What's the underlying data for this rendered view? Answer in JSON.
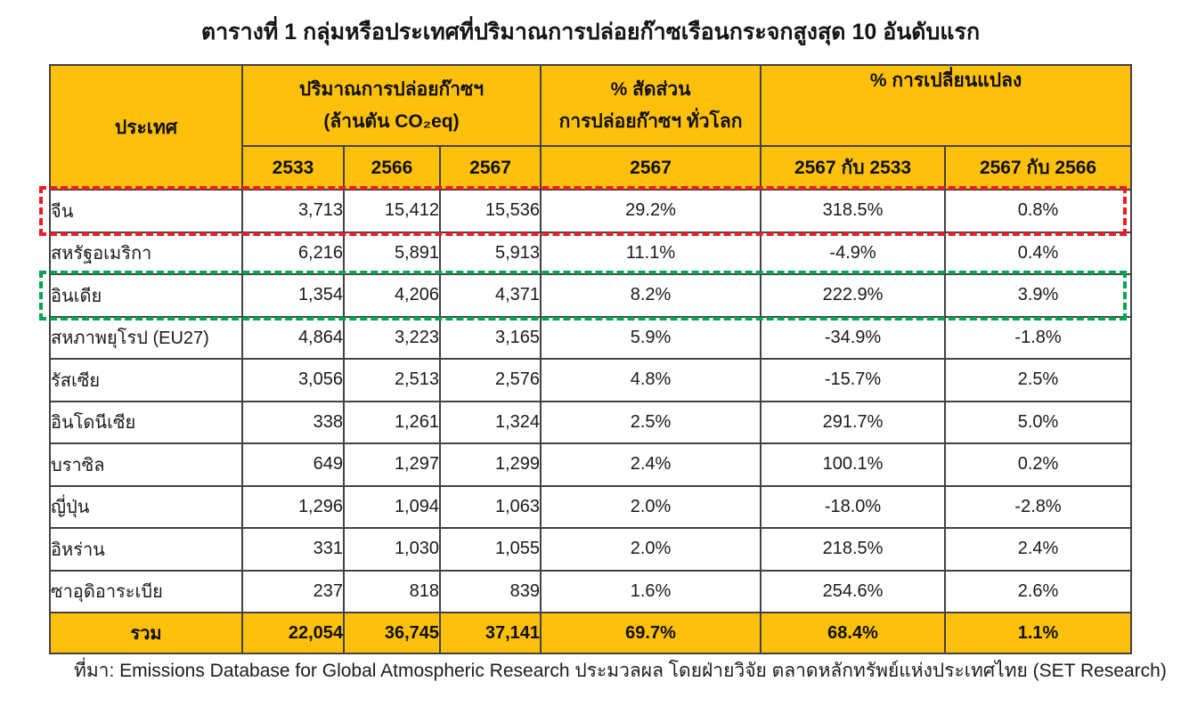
{
  "page": {
    "title": "ตารางที่ 1 กลุ่มหรือประเทศที่ปริมาณการปล่อยก๊าซเรือนกระจกสูงสุด 10 อันดับแรก",
    "source_note": "ที่มา: Emissions Database for Global Atmospheric Research ประมวลผล โดยฝ่ายวิจัย ตลาดหลักทรัพย์แห่งประเทศไทย (SET Research)"
  },
  "colors": {
    "header_bg": "#FDC00C",
    "border": "#424242",
    "highlight_red": "#EE1C25",
    "highlight_green": "#00A551"
  },
  "table": {
    "header": {
      "country": "ประเทศ",
      "emissions_title": "ปริมาณการปล่อยก๊าซฯ",
      "emissions_unit": "(ล้านตัน CO₂eq)",
      "years": [
        "2533",
        "2566",
        "2567"
      ],
      "share_title_1": "% สัดส่วน",
      "share_title_2": "การปล่อยก๊าซฯ ทั่วโลก",
      "share_year": "2567",
      "change_title": "% การเปลี่ยนแปลง",
      "change_cols": [
        "2567 กับ 2533",
        "2567 กับ 2566"
      ]
    },
    "rows": [
      {
        "country": "จีน",
        "y2533": "3,713",
        "y2566": "15,412",
        "y2567": "15,536",
        "share": "29.2%",
        "chg2533": "318.5%",
        "chg2566": "0.8%"
      },
      {
        "country": "สหรัฐอเมริกา",
        "y2533": "6,216",
        "y2566": "5,891",
        "y2567": "5,913",
        "share": "11.1%",
        "chg2533": "-4.9%",
        "chg2566": "0.4%"
      },
      {
        "country": "อินเดีย",
        "y2533": "1,354",
        "y2566": "4,206",
        "y2567": "4,371",
        "share": "8.2%",
        "chg2533": "222.9%",
        "chg2566": "3.9%"
      },
      {
        "country": "สหภาพยุโรป (EU27)",
        "y2533": "4,864",
        "y2566": "3,223",
        "y2567": "3,165",
        "share": "5.9%",
        "chg2533": "-34.9%",
        "chg2566": "-1.8%"
      },
      {
        "country": "รัสเซีย",
        "y2533": "3,056",
        "y2566": "2,513",
        "y2567": "2,576",
        "share": "4.8%",
        "chg2533": "-15.7%",
        "chg2566": "2.5%"
      },
      {
        "country": "อินโดนีเซีย",
        "y2533": "338",
        "y2566": "1,261",
        "y2567": "1,324",
        "share": "2.5%",
        "chg2533": "291.7%",
        "chg2566": "5.0%"
      },
      {
        "country": "บราซิล",
        "y2533": "649",
        "y2566": "1,297",
        "y2567": "1,299",
        "share": "2.4%",
        "chg2533": "100.1%",
        "chg2566": "0.2%"
      },
      {
        "country": "ญี่ปุ่น",
        "y2533": "1,296",
        "y2566": "1,094",
        "y2567": "1,063",
        "share": "2.0%",
        "chg2533": "-18.0%",
        "chg2566": "-2.8%"
      },
      {
        "country": "อิหร่าน",
        "y2533": "331",
        "y2566": "1,030",
        "y2567": "1,055",
        "share": "2.0%",
        "chg2533": "218.5%",
        "chg2566": "2.4%"
      },
      {
        "country": "ซาอุดิอาระเบีย",
        "y2533": "237",
        "y2566": "818",
        "y2567": "839",
        "share": "1.6%",
        "chg2533": "254.6%",
        "chg2566": "2.6%"
      }
    ],
    "total": {
      "label": "รวม",
      "y2533": "22,054",
      "y2566": "36,745",
      "y2567": "37,141",
      "share": "69.7%",
      "chg2533": "68.4%",
      "chg2566": "1.1%"
    }
  },
  "highlights": {
    "red_row_index": 0,
    "green_row_index": 2
  },
  "chart_data": {
    "type": "table",
    "title": "ตารางที่ 1 กลุ่มหรือประเทศที่ปริมาณการปล่อยก๊าซเรือนกระจกสูงสุด 10 อันดับแรก",
    "source": "ที่มา: Emissions Database for Global Atmospheric Research ประมวลผล โดยฝ่ายวิจัย ตลาดหลักทรัพย์แห่งประเทศไทย (SET Research)",
    "columns": [
      "ประเทศ",
      "ปริมาณการปล่อยก๊าซฯ (ล้านตัน CO₂eq) 2533",
      "ปริมาณการปล่อยก๊าซฯ (ล้านตัน CO₂eq) 2566",
      "ปริมาณการปล่อยก๊าซฯ (ล้านตัน CO₂eq) 2567",
      "% สัดส่วนการปล่อยก๊าซฯ ทั่วโลก 2567",
      "% การเปลี่ยนแปลง 2567 กับ 2533",
      "% การเปลี่ยนแปลง 2567 กับ 2566"
    ],
    "rows": [
      [
        "จีน",
        3713,
        15412,
        15536,
        29.2,
        318.5,
        0.8
      ],
      [
        "สหรัฐอเมริกา",
        6216,
        5891,
        5913,
        11.1,
        -4.9,
        0.4
      ],
      [
        "อินเดีย",
        1354,
        4206,
        4371,
        8.2,
        222.9,
        3.9
      ],
      [
        "สหภาพยุโรป (EU27)",
        4864,
        3223,
        3165,
        5.9,
        -34.9,
        -1.8
      ],
      [
        "รัสเซีย",
        3056,
        2513,
        2576,
        4.8,
        -15.7,
        2.5
      ],
      [
        "อินโดนีเซีย",
        338,
        1261,
        1324,
        2.5,
        291.7,
        5.0
      ],
      [
        "บราซิล",
        649,
        1297,
        1299,
        2.4,
        100.1,
        0.2
      ],
      [
        "ญี่ปุ่น",
        1296,
        1094,
        1063,
        2.0,
        -18.0,
        -2.8
      ],
      [
        "อิหร่าน",
        331,
        1030,
        1055,
        2.0,
        218.5,
        2.4
      ],
      [
        "ซาอุดิอาระเบีย",
        237,
        818,
        839,
        1.6,
        254.6,
        2.6
      ]
    ],
    "total_row": [
      "รวม",
      22054,
      36745,
      37141,
      69.7,
      68.4,
      1.1
    ],
    "annotations": {
      "red_dashed_box_row": "จีน",
      "green_dashed_box_row": "อินเดีย"
    }
  }
}
